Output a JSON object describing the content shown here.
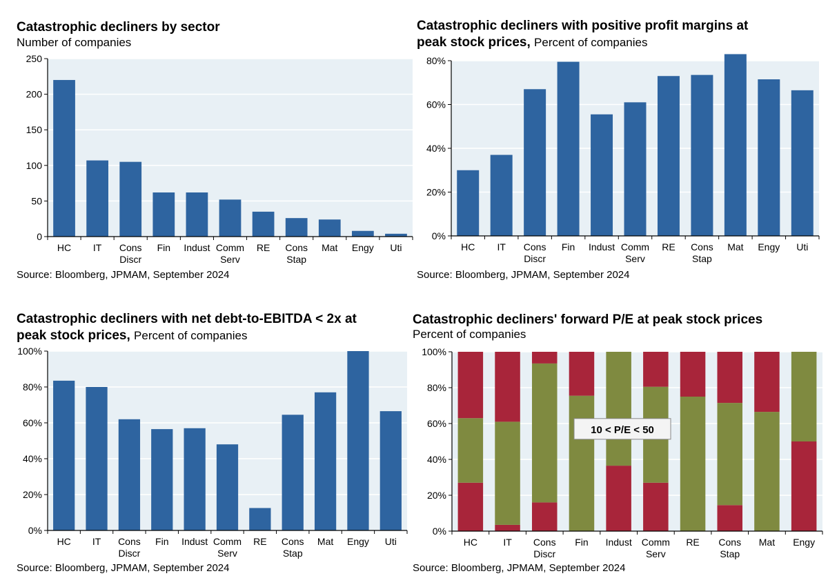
{
  "colors": {
    "plot_bg": "#e8f0f5",
    "grid": "#ffffff",
    "bar": "#2e64a0",
    "red": "#a8253a",
    "olive": "#7f8a40",
    "axis": "#000000"
  },
  "source_text": "Source: Bloomberg, JPMAM, September 2024",
  "chart_data": [
    {
      "type": "bar",
      "title": "Catastrophic decliners by sector",
      "subtitle": "Number of companies",
      "categories": [
        [
          "HC"
        ],
        [
          "IT"
        ],
        [
          "Cons",
          "Discr"
        ],
        [
          "Fin"
        ],
        [
          "Indust"
        ],
        [
          "Comm",
          "Serv"
        ],
        [
          "RE"
        ],
        [
          "Cons",
          "Stap"
        ],
        [
          "Mat"
        ],
        [
          "Engy"
        ],
        [
          "Uti"
        ]
      ],
      "values": [
        220,
        107,
        105,
        62,
        62,
        52,
        35,
        26,
        24,
        8,
        4
      ],
      "ylim": [
        0,
        250
      ],
      "yticks": [
        0,
        50,
        100,
        150,
        200,
        250
      ],
      "ytick_labels": [
        "0",
        "50",
        "100",
        "150",
        "200",
        "250"
      ],
      "grid": true
    },
    {
      "type": "bar",
      "title": "Catastrophic decliners with positive profit margins at",
      "title_line2": "peak stock prices,",
      "subtitle": "Percent of companies",
      "categories": [
        [
          "HC"
        ],
        [
          "IT"
        ],
        [
          "Cons",
          "Discr"
        ],
        [
          "Fin"
        ],
        [
          "Indust"
        ],
        [
          "Comm",
          "Serv"
        ],
        [
          "RE"
        ],
        [
          "Cons",
          "Stap"
        ],
        [
          "Mat"
        ],
        [
          "Engy"
        ],
        [
          "Uti"
        ]
      ],
      "values": [
        30,
        37,
        67,
        79.5,
        55.5,
        61,
        73,
        73.5,
        83,
        71.5,
        66.5
      ],
      "ylim": [
        0,
        80
      ],
      "yticks": [
        0,
        20,
        40,
        60,
        80
      ],
      "ytick_labels": [
        "0%",
        "20%",
        "40%",
        "60%",
        "80%"
      ],
      "grid": true
    },
    {
      "type": "bar",
      "title": "Catastrophic decliners with net debt-to-EBITDA < 2x at",
      "title_line2": "peak stock prices,",
      "subtitle": "Percent of companies",
      "categories": [
        [
          "HC"
        ],
        [
          "IT"
        ],
        [
          "Cons",
          "Discr"
        ],
        [
          "Fin"
        ],
        [
          "Indust"
        ],
        [
          "Comm",
          "Serv"
        ],
        [
          "RE"
        ],
        [
          "Cons",
          "Stap"
        ],
        [
          "Mat"
        ],
        [
          "Engy"
        ],
        [
          "Uti"
        ]
      ],
      "values": [
        83.5,
        80,
        62,
        56.5,
        57,
        48,
        12.5,
        64.5,
        77,
        100,
        66.5
      ],
      "ylim": [
        0,
        100
      ],
      "yticks": [
        0,
        20,
        40,
        60,
        80,
        100
      ],
      "ytick_labels": [
        "0%",
        "20%",
        "40%",
        "60%",
        "80%",
        "100%"
      ],
      "grid": true
    },
    {
      "type": "bar",
      "stacked": true,
      "title": "Catastrophic decliners' forward P/E at peak stock prices",
      "subtitle": "Percent of companies",
      "categories": [
        [
          "HC"
        ],
        [
          "IT"
        ],
        [
          "Cons",
          "Discr"
        ],
        [
          "Fin"
        ],
        [
          "Indust"
        ],
        [
          "Comm",
          "Serv"
        ],
        [
          "RE"
        ],
        [
          "Cons",
          "Stap"
        ],
        [
          "Mat"
        ],
        [
          "Engy"
        ]
      ],
      "series": [
        {
          "name": "bottom",
          "color": "red",
          "values": [
            27,
            3.5,
            16,
            0,
            36.5,
            27,
            0,
            14.5,
            0,
            50
          ]
        },
        {
          "name": "10 < P/E < 50",
          "color": "olive",
          "values": [
            36,
            57.5,
            77.5,
            75.5,
            63.5,
            53.5,
            75,
            57,
            66.5,
            50
          ]
        },
        {
          "name": "top",
          "color": "red",
          "values": [
            37,
            39,
            6.5,
            24.5,
            0,
            19.5,
            25,
            28.5,
            33.5,
            0
          ]
        }
      ],
      "annotation": "10 < P/E < 50",
      "ylim": [
        0,
        100
      ],
      "yticks": [
        0,
        20,
        40,
        60,
        80,
        100
      ],
      "ytick_labels": [
        "0%",
        "20%",
        "40%",
        "60%",
        "80%",
        "100%"
      ],
      "grid": true
    }
  ]
}
